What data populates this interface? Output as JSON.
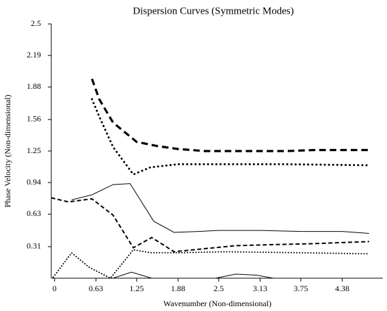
{
  "chart_data": {
    "type": "line",
    "title": "Dispersion Curves (Symmetric Modes)",
    "xlabel": "Wavenumber (Non-dimensional)",
    "ylabel": "Phase Velocity (Non-dimensional)",
    "xlim": [
      -0.05,
      5.0
    ],
    "ylim": [
      0,
      2.5
    ],
    "xticks": [
      0,
      0.63,
      1.25,
      1.88,
      2.5,
      3.13,
      3.75,
      4.38
    ],
    "yticks": [
      0.31,
      0.63,
      0.94,
      1.25,
      1.56,
      1.88,
      2.19,
      2.5
    ],
    "series": [
      {
        "color": "#000000",
        "line_style": "dashed",
        "line_width": 3.2,
        "x": [
          0.57,
          0.68,
          0.89,
          1.25,
          1.56,
          1.88,
          2.29,
          2.81,
          3.54,
          3.96,
          4.79
        ],
        "values": [
          1.96,
          1.76,
          1.53,
          1.34,
          1.3,
          1.27,
          1.25,
          1.25,
          1.25,
          1.26,
          1.26
        ]
      },
      {
        "color": "#000000",
        "line_style": "dotted",
        "line_width": 3,
        "x": [
          0.57,
          0.68,
          0.89,
          1.2,
          1.46,
          1.88,
          2.29,
          3.54,
          4.79
        ],
        "values": [
          1.76,
          1.59,
          1.29,
          1.02,
          1.09,
          1.12,
          1.12,
          1.12,
          1.11
        ]
      },
      {
        "color": "#000000",
        "line_style": "solid",
        "line_width": 1,
        "x": [
          0.26,
          0.57,
          0.89,
          1.15,
          1.51,
          1.82,
          2.19,
          2.5,
          3.13,
          3.75,
          4.38,
          4.79
        ],
        "values": [
          0.77,
          0.82,
          0.92,
          0.93,
          0.56,
          0.45,
          0.46,
          0.47,
          0.47,
          0.46,
          0.46,
          0.44
        ]
      },
      {
        "color": "#000000",
        "line_style": "dashed",
        "line_width": 2,
        "x": [
          -0.05,
          0.21,
          0.57,
          0.89,
          1.2,
          1.48,
          1.82,
          2.29,
          2.76,
          3.33,
          3.96,
          4.79
        ],
        "values": [
          0.79,
          0.75,
          0.78,
          0.62,
          0.3,
          0.4,
          0.26,
          0.29,
          0.32,
          0.33,
          0.34,
          0.36
        ]
      },
      {
        "color": "#000000",
        "line_style": "dotted",
        "line_width": 2,
        "x": [
          -0.02,
          0.26,
          0.52,
          0.85,
          1.2,
          1.46,
          1.88,
          2.6,
          3.75,
          4.79
        ],
        "values": [
          0.01,
          0.25,
          0.11,
          0.0,
          0.28,
          0.25,
          0.25,
          0.26,
          0.25,
          0.24
        ]
      },
      {
        "color": "#000000",
        "line_style": "solid",
        "line_width": 1,
        "x": [
          0.89,
          1.17,
          1.48,
          2.0,
          2.45,
          2.76,
          3.07,
          3.33
        ],
        "values": [
          0.0,
          0.06,
          0.0,
          null,
          0.0,
          0.04,
          0.03,
          0.0
        ]
      }
    ]
  }
}
